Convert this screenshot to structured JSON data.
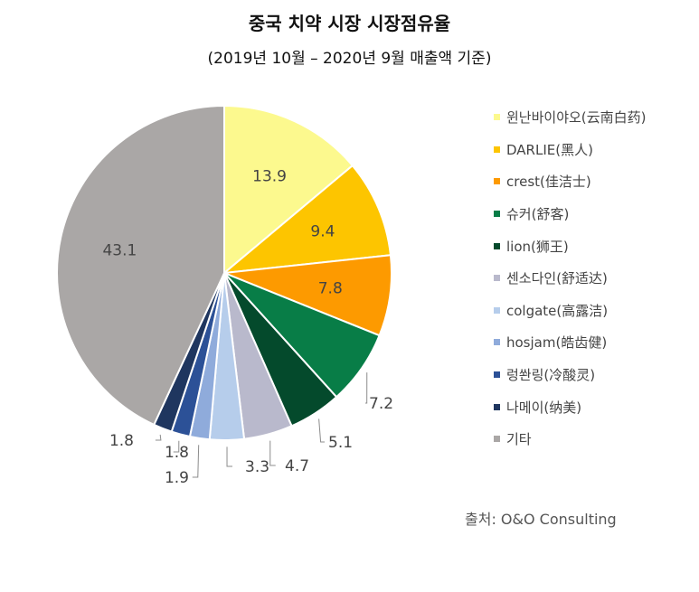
{
  "chart_data": {
    "type": "pie",
    "title": "중국 치약 시장 시장점유율",
    "subtitle": "(2019년 10월 – 2020년 9월 매출액 기준)",
    "slices": [
      {
        "name": "윈난바이야오(云南白药)",
        "value": 13.9,
        "color": "#fcf98e"
      },
      {
        "name": "DARLIE(黑人)",
        "value": 9.4,
        "color": "#fdc500"
      },
      {
        "name": "crest(佳洁士)",
        "value": 7.8,
        "color": "#fd9a00"
      },
      {
        "name": "슈커(舒客)",
        "value": 7.2,
        "color": "#087d47"
      },
      {
        "name": "lion(狮王)",
        "value": 5.1,
        "color": "#044a2c"
      },
      {
        "name": "센소다인(舒适达)",
        "value": 4.7,
        "color": "#b9b9cc"
      },
      {
        "name": "colgate(高露洁)",
        "value": 3.3,
        "color": "#b6cdeb"
      },
      {
        "name": "hosjam(皓齿健)",
        "value": 1.9,
        "color": "#8fabdb"
      },
      {
        "name": "렁쏸링(冷酸灵)",
        "value": 1.8,
        "color": "#2c5197"
      },
      {
        "name": "나메이(纳美)",
        "value": 1.8,
        "color": "#1f365f"
      },
      {
        "name": "기타",
        "value": 43.1,
        "color": "#aaa7a6"
      }
    ]
  },
  "source": "출처: O&O Consulting"
}
